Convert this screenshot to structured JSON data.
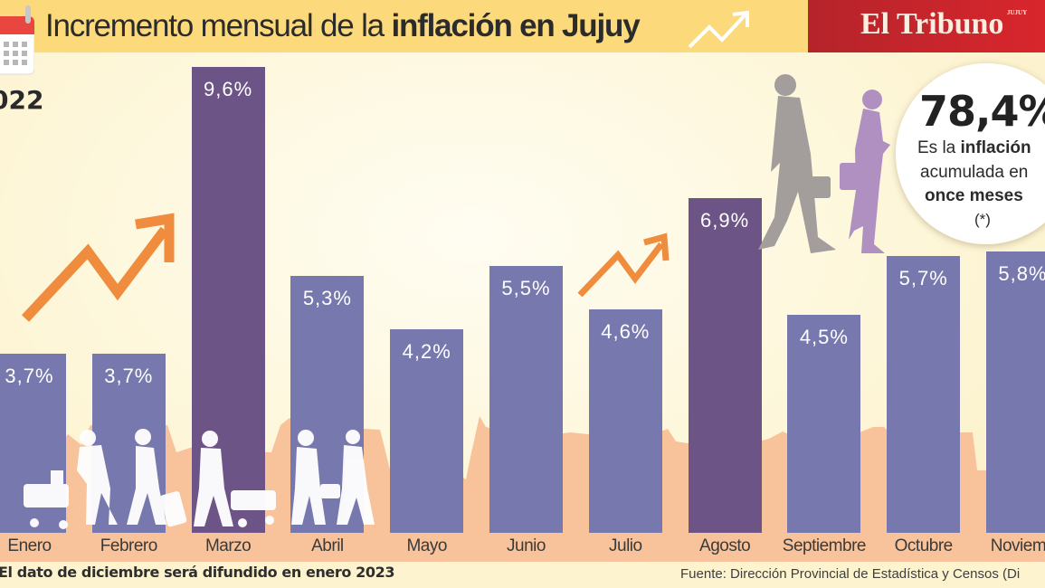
{
  "header": {
    "title_prefix": "Incremento mensual de la ",
    "title_bold": "inflación en Jujuy",
    "year": "022",
    "logo": "El Tribuno",
    "logo_sub": "JUJUY",
    "icons": [
      "calendar-icon",
      "trend-arrow-icon"
    ]
  },
  "callout": {
    "value": "78,4%",
    "line1_prefix": "Es la ",
    "line1_bold": "inflación",
    "line2": "acumulada en",
    "line3": "once meses",
    "line4": "(*)"
  },
  "footer": {
    "note": "El dato de diciembre será difundido en enero 2023",
    "source": "Fuente: Dirección Provincial de Estadística y Censos (Di"
  },
  "colors": {
    "bar": "#7778ad",
    "bar_highlight": "#6d5486",
    "arrow": "#f08c3e",
    "header": "#fcd97a",
    "logo_bg": "#c8252b",
    "skyline": "#f8c39a"
  },
  "chart_data": {
    "type": "bar",
    "title": "Incremento mensual de la inflación en Jujuy",
    "xlabel": "",
    "ylabel": "",
    "ylim": [
      0,
      10
    ],
    "grid": false,
    "categories": [
      "Enero",
      "Febrero",
      "Marzo",
      "Abril",
      "Mayo",
      "Junio",
      "Julio",
      "Agosto",
      "Septiembre",
      "Octubre",
      "Noviembre"
    ],
    "values": [
      3.7,
      3.7,
      9.6,
      5.3,
      4.2,
      5.5,
      4.6,
      6.9,
      4.5,
      5.7,
      5.8
    ],
    "labels": [
      "3,7%",
      "3,7%",
      "9,6%",
      "5,3%",
      "4,2%",
      "5,5%",
      "4,6%",
      "6,9%",
      "4,5%",
      "5,7%",
      "5,8%"
    ],
    "highlighted": [
      "Marzo",
      "Agosto"
    ],
    "month_labels": [
      "Enero",
      "Febrero",
      "Marzo",
      "Abril",
      "Mayo",
      "Junio",
      "Julio",
      "Agosto",
      "Septiembre",
      "Octubre",
      "Noviemb"
    ]
  }
}
